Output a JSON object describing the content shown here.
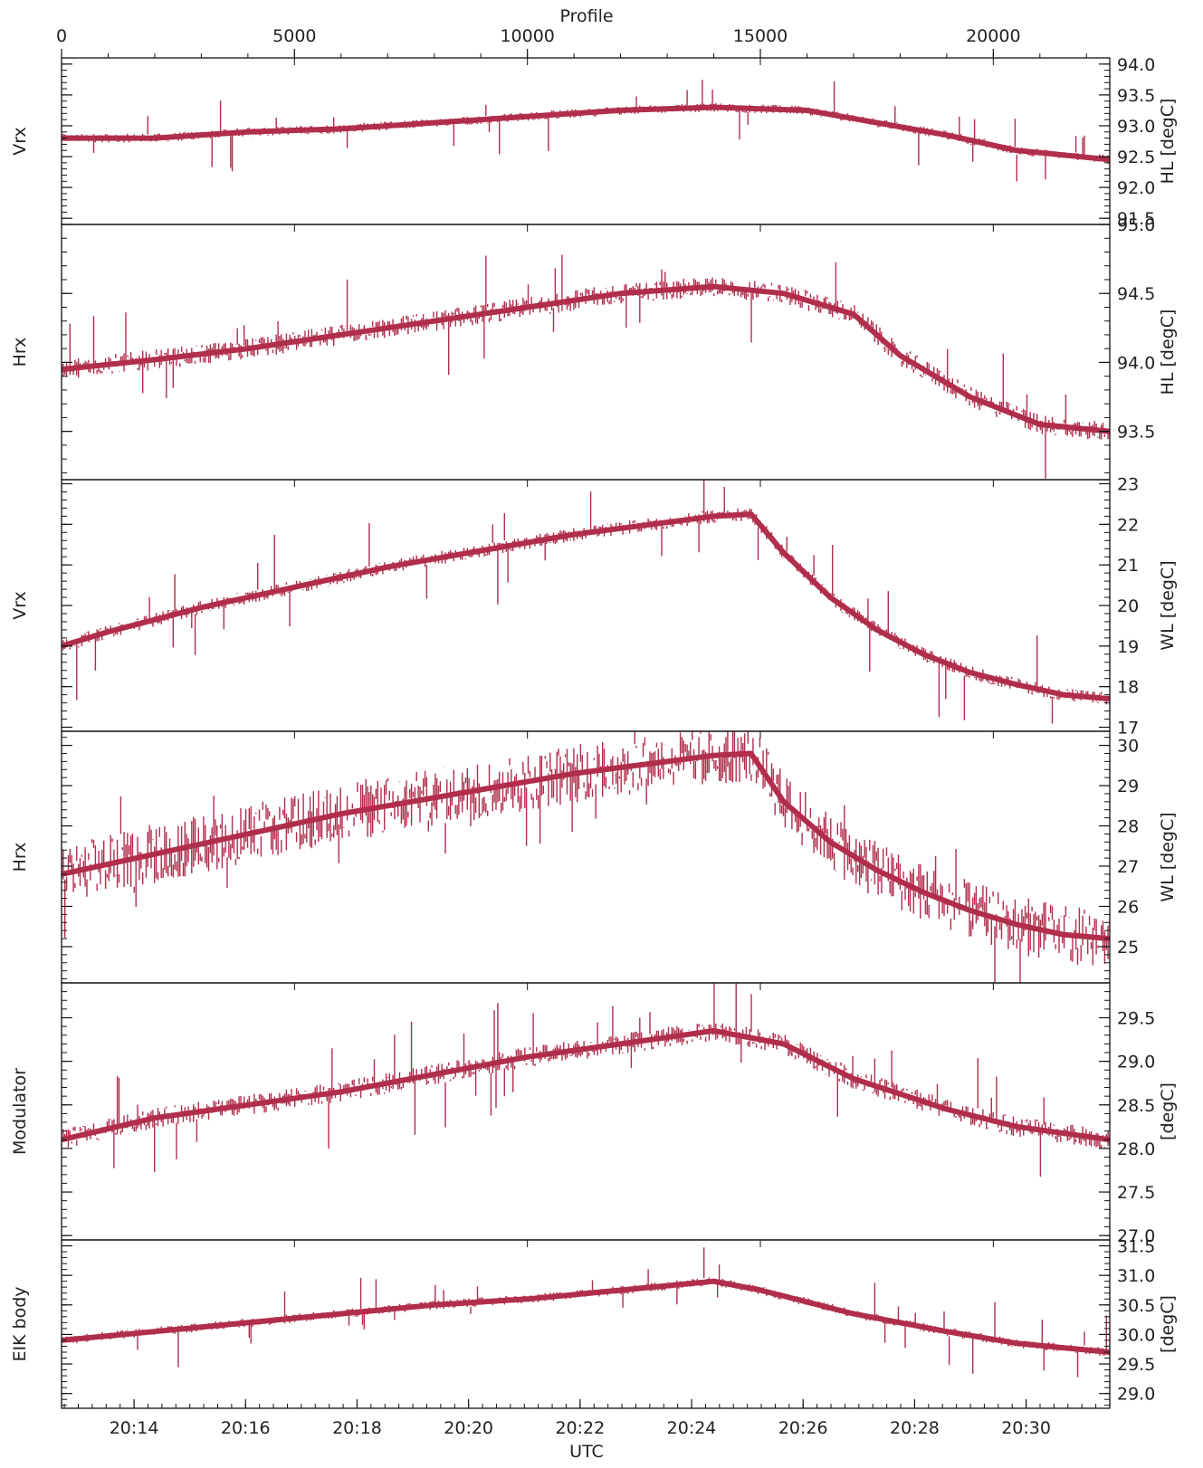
{
  "colors": {
    "series": "#b02e4c",
    "axis": "#111111",
    "text": "#222222"
  },
  "top_axis": {
    "label": "Profile",
    "range": [
      0,
      22500
    ],
    "ticks": [
      0,
      5000,
      10000,
      15000,
      20000
    ],
    "tick_labels": [
      "0",
      "5000",
      "10000",
      "15000",
      "20000"
    ]
  },
  "bottom_axis": {
    "label": "UTC",
    "range_minutes": [
      1212.7,
      1231.5
    ],
    "ticks_minutes": [
      1214,
      1216,
      1218,
      1220,
      1222,
      1224,
      1226,
      1228,
      1230
    ],
    "tick_labels": [
      "20:14",
      "20:16",
      "20:18",
      "20:20",
      "20:22",
      "20:24",
      "20:26",
      "20:28",
      "20:30"
    ]
  },
  "chart_data": [
    {
      "type": "line",
      "left_label": "Vrx",
      "right_label": "HL [degC]",
      "ylim": [
        91.4,
        94.1
      ],
      "y_ticks": [
        91.5,
        92.0,
        92.5,
        93.0,
        93.5,
        94.0
      ],
      "y_tick_labels": [
        "91.5",
        "92.0",
        "92.5",
        "93.0",
        "93.5",
        "94.0"
      ],
      "series": [
        {
          "profile": [
            0,
            2000,
            4000,
            6000,
            8000,
            10000,
            12000,
            14000,
            16000,
            17500,
            19000,
            20500,
            22500
          ],
          "values": [
            92.8,
            92.8,
            92.9,
            92.95,
            93.05,
            93.15,
            93.25,
            93.3,
            93.25,
            93.05,
            92.85,
            92.6,
            92.45
          ]
        }
      ]
    },
    {
      "type": "line",
      "left_label": "Hrx",
      "right_label": "HL [degC]",
      "ylim": [
        93.15,
        95.0
      ],
      "y_ticks": [
        93.5,
        94.0,
        94.5,
        95.0
      ],
      "y_tick_labels": [
        "93.5",
        "94.0",
        "94.5",
        "95.0"
      ],
      "series": [
        {
          "profile": [
            0,
            2000,
            4000,
            6000,
            8000,
            10000,
            12000,
            14000,
            15500,
            17000,
            18000,
            19500,
            21000,
            22500
          ],
          "values": [
            93.95,
            94.02,
            94.1,
            94.2,
            94.3,
            94.4,
            94.5,
            94.55,
            94.5,
            94.35,
            94.05,
            93.75,
            93.55,
            93.5
          ]
        }
      ]
    },
    {
      "type": "line",
      "left_label": "Vrx",
      "right_label": "WL [degC]",
      "ylim": [
        16.9,
        23.1
      ],
      "y_ticks": [
        17,
        18,
        19,
        20,
        21,
        22,
        23
      ],
      "y_tick_labels": [
        "17",
        "18",
        "19",
        "20",
        "21",
        "22",
        "23"
      ],
      "series": [
        {
          "profile": [
            0,
            1000,
            2000,
            3000,
            4000,
            5000,
            6000,
            7000,
            8000,
            9000,
            10000,
            11000,
            12000,
            13000,
            14000,
            14800,
            15500,
            16500,
            17500,
            18500,
            19500,
            20500,
            21500,
            22500
          ],
          "values": [
            19.0,
            19.35,
            19.65,
            19.95,
            20.2,
            20.45,
            20.7,
            20.95,
            21.15,
            21.35,
            21.55,
            21.75,
            21.9,
            22.05,
            22.2,
            22.25,
            21.3,
            20.2,
            19.4,
            18.8,
            18.35,
            18.05,
            17.8,
            17.7
          ]
        }
      ]
    },
    {
      "type": "line",
      "left_label": "Hrx",
      "right_label": "WL [degC]",
      "ylim": [
        24.1,
        30.35
      ],
      "y_ticks": [
        25,
        26,
        27,
        28,
        29,
        30
      ],
      "y_tick_labels": [
        "25",
        "26",
        "27",
        "28",
        "29",
        "30"
      ],
      "series": [
        {
          "profile": [
            0,
            1000,
            2000,
            3000,
            4000,
            5000,
            6000,
            7000,
            8000,
            9000,
            10000,
            11000,
            12000,
            13000,
            14000,
            14800,
            15500,
            16500,
            17500,
            18500,
            19500,
            20500,
            21500,
            22500
          ],
          "values": [
            26.8,
            27.05,
            27.3,
            27.55,
            27.8,
            28.05,
            28.3,
            28.5,
            28.7,
            28.9,
            29.1,
            29.3,
            29.45,
            29.6,
            29.75,
            29.8,
            28.6,
            27.6,
            26.9,
            26.35,
            25.9,
            25.55,
            25.3,
            25.2
          ]
        }
      ]
    },
    {
      "type": "line",
      "left_label": "Modulator",
      "right_label": "[degC]",
      "ylim": [
        26.95,
        29.9
      ],
      "y_ticks": [
        27.0,
        27.5,
        28.0,
        28.5,
        29.0,
        29.5
      ],
      "y_tick_labels": [
        "27.0",
        "27.5",
        "28.0",
        "28.5",
        "29.0",
        "29.5"
      ],
      "series": [
        {
          "profile": [
            0,
            2000,
            4000,
            6000,
            8000,
            10000,
            12000,
            14000,
            15500,
            17000,
            19000,
            20500,
            22500
          ],
          "values": [
            28.1,
            28.35,
            28.5,
            28.65,
            28.85,
            29.05,
            29.2,
            29.35,
            29.2,
            28.8,
            28.45,
            28.25,
            28.1
          ]
        }
      ]
    },
    {
      "type": "line",
      "left_label": "EIK body",
      "right_label": "[degC]",
      "ylim": [
        28.75,
        31.6
      ],
      "y_ticks": [
        29.0,
        29.5,
        30.0,
        30.5,
        31.0,
        31.5
      ],
      "y_tick_labels": [
        "29.0",
        "29.5",
        "30.0",
        "30.5",
        "31.0",
        "31.5"
      ],
      "series": [
        {
          "profile": [
            0,
            2000,
            4000,
            6000,
            8000,
            10000,
            12000,
            14000,
            15000,
            17000,
            19000,
            20500,
            22500
          ],
          "values": [
            29.9,
            30.05,
            30.2,
            30.35,
            30.5,
            30.6,
            30.75,
            30.9,
            30.75,
            30.35,
            30.05,
            29.85,
            29.7
          ]
        }
      ]
    }
  ]
}
